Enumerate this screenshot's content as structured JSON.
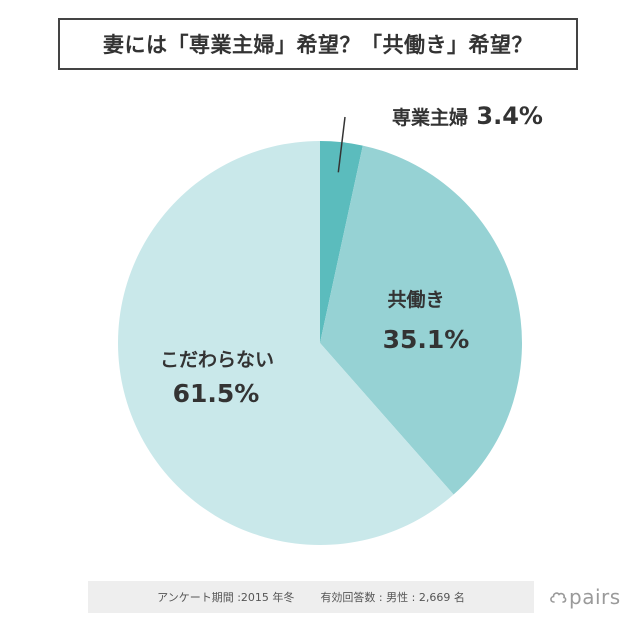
{
  "title": "妻には「専業主婦」希望？「共働き」希望？",
  "chart_data": {
    "type": "pie",
    "title": "妻には「専業主婦」希望？「共働き」希望？",
    "slices": [
      {
        "label": "専業主婦",
        "value": 3.4,
        "value_label": "3.4%",
        "color": "#5bbcbd"
      },
      {
        "label": "共働き",
        "value": 35.1,
        "value_label": "35.1%",
        "color": "#96d2d4"
      },
      {
        "label": "こだわらない",
        "value": 61.5,
        "value_label": "61.5%",
        "color": "#c9e8ea"
      }
    ],
    "start_angle": "12 o'clock",
    "direction": "clockwise",
    "legend": "none"
  },
  "footer": {
    "period": "アンケート期間 :2015 年冬",
    "respondents": "有効回答数 : 男性 : 2,669 名"
  },
  "logo": {
    "text": "pairs",
    "icon": "cloud-icon",
    "color": "#9a9a9a"
  }
}
